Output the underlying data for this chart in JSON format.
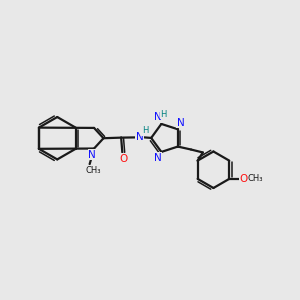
{
  "bg_color": "#e8e8e8",
  "bond_color": "#1a1a1a",
  "N_color": "#1010ff",
  "O_color": "#ff1010",
  "NH_color": "#008080",
  "figsize": [
    3.0,
    3.0
  ],
  "dpi": 100,
  "xlim": [
    0,
    10
  ],
  "ylim": [
    0,
    10
  ]
}
